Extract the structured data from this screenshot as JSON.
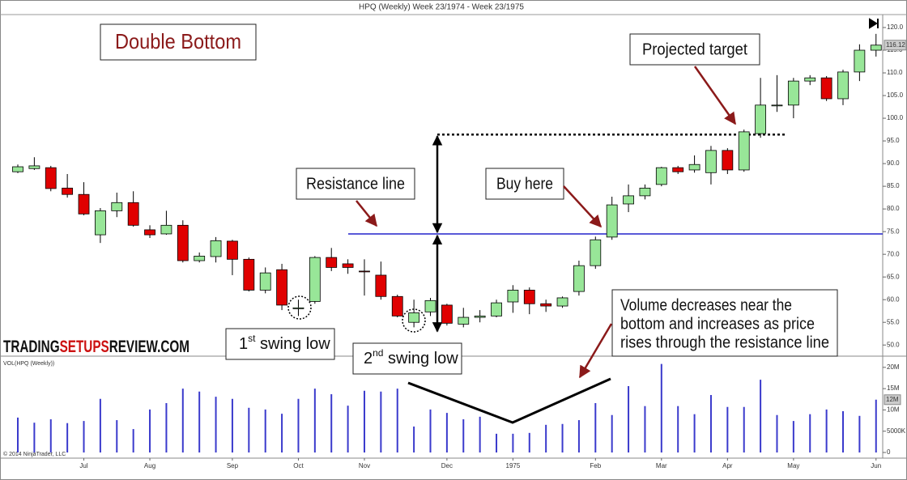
{
  "chart_data": [
    {
      "type": "candlestick",
      "title": "HPQ (Weekly)  Week 23/1974 - Week 23/1975",
      "categories": [
        null,
        null,
        null,
        null,
        "Jul",
        null,
        null,
        null,
        "Aug",
        null,
        null,
        null,
        null,
        "Sep",
        null,
        null,
        null,
        "Oct",
        null,
        null,
        null,
        "Nov",
        null,
        null,
        null,
        null,
        "Dec",
        null,
        null,
        null,
        "1975",
        null,
        null,
        null,
        null,
        "Feb",
        null,
        null,
        null,
        "Mar",
        null,
        null,
        null,
        "Apr",
        null,
        null,
        null,
        "May",
        null,
        null,
        null,
        null,
        "Jun"
      ],
      "open": [
        88.2,
        88.9,
        89.1,
        84.6,
        83.2,
        74.3,
        79.6,
        81.4,
        75.4,
        74.5,
        76.4,
        68.6,
        69.5,
        72.9,
        68.9,
        62.1,
        66.6,
        58.0,
        59.6,
        69.3,
        67.9,
        66.3,
        65.4,
        60.7,
        55.0,
        57.3,
        58.8,
        54.6,
        56.1,
        56.4,
        59.5,
        62.1,
        59.1,
        58.6,
        61.8,
        67.5,
        73.8,
        81.1,
        82.9,
        85.4,
        89.1,
        88.6,
        88.0,
        92.9,
        88.6,
        96.6,
        102.8,
        102.9,
        108.2,
        108.9,
        104.3,
        110.2,
        115.0
      ],
      "high": [
        89.8,
        91.4,
        89.5,
        87.7,
        85.9,
        80.2,
        83.6,
        83.9,
        76.4,
        79.6,
        77.5,
        70.4,
        73.8,
        73.2,
        69.3,
        67.1,
        67.9,
        60.0,
        69.6,
        71.4,
        68.9,
        68.9,
        68.4,
        61.1,
        60.0,
        60.4,
        59.1,
        58.2,
        57.7,
        60.0,
        63.2,
        62.7,
        60.0,
        60.7,
        68.6,
        73.9,
        82.7,
        85.4,
        85.4,
        89.3,
        89.5,
        91.8,
        93.9,
        93.4,
        97.5,
        108.9,
        109.5,
        108.9,
        109.5,
        109.3,
        110.7,
        116.3,
        118.6
      ],
      "low": [
        87.9,
        88.6,
        83.9,
        82.5,
        78.6,
        72.5,
        78.2,
        76.1,
        73.6,
        74.3,
        68.2,
        68.2,
        68.2,
        65.4,
        61.8,
        61.4,
        57.7,
        56.4,
        59.1,
        66.3,
        65.7,
        60.9,
        60.0,
        56.1,
        53.9,
        56.4,
        54.3,
        53.9,
        55.0,
        56.1,
        57.1,
        56.8,
        57.3,
        58.2,
        60.9,
        66.8,
        73.2,
        79.3,
        82.1,
        85.0,
        87.7,
        88.0,
        85.4,
        87.7,
        88.2,
        95.7,
        101.4,
        100.0,
        107.3,
        103.8,
        102.9,
        108.2,
        113.6
      ],
      "close": [
        89.3,
        89.5,
        84.5,
        83.2,
        78.9,
        79.6,
        81.4,
        76.4,
        74.3,
        76.4,
        68.6,
        69.6,
        73.0,
        68.9,
        62.1,
        65.9,
        58.8,
        58.2,
        69.3,
        67.1,
        67.1,
        66.2,
        60.7,
        56.4,
        57.1,
        59.8,
        54.8,
        56.1,
        56.4,
        59.3,
        62.1,
        59.1,
        58.6,
        60.4,
        67.5,
        73.2,
        80.9,
        82.9,
        84.6,
        89.1,
        88.2,
        89.8,
        92.9,
        88.6,
        97.0,
        102.9,
        102.9,
        108.2,
        108.9,
        104.3,
        110.2,
        115.0,
        116.12
      ],
      "up_color": "#98e698",
      "down_color": "#e00000",
      "last_price": {
        "value": 116.12,
        "label": "116.12"
      },
      "ylim": [
        47.9,
        122.5
      ],
      "yticks": [
        {
          "value": 120,
          "label": "120.0"
        },
        {
          "value": 115,
          "label": "115.0"
        },
        {
          "value": 110,
          "label": "110.0"
        },
        {
          "value": 105,
          "label": "105.0"
        },
        {
          "value": 100,
          "label": "100.0"
        },
        {
          "value": 95,
          "label": "95.0"
        },
        {
          "value": 90,
          "label": "90.0"
        },
        {
          "value": 85,
          "label": "85.0"
        },
        {
          "value": 80,
          "label": "80.0"
        },
        {
          "value": 75,
          "label": "75.0"
        },
        {
          "value": 70,
          "label": "70.0"
        },
        {
          "value": 65,
          "label": "65.0"
        },
        {
          "value": 60,
          "label": "60.0"
        },
        {
          "value": 55,
          "label": "55.0"
        },
        {
          "value": 50,
          "label": "50.0"
        }
      ],
      "annotations": {
        "heading": "Double Bottom",
        "resistance_label": "Resistance line",
        "resistance_level": 74.5,
        "resistance_color": "#2222cc",
        "target_label": "Projected target",
        "target_level": 96.4,
        "measured_low": 53,
        "buy_label": "Buy here",
        "first_low": [
          "1",
          "st",
          " swing low"
        ],
        "second_low": [
          "2",
          "nd",
          " swing low"
        ],
        "volume_note": [
          "Volume decreases near the",
          "bottom and increases as price",
          "rises through the resistance line"
        ]
      },
      "watermark": [
        "TRADING",
        "SETUPS",
        "REVIEW.COM"
      ],
      "footer": "© 2014 NinjaTrader, LLC"
    },
    {
      "type": "bar",
      "title": "VOL(HPQ (Weekly))",
      "values": [
        8.2,
        7.0,
        7.8,
        6.9,
        7.4,
        12.6,
        7.6,
        5.5,
        10.1,
        11.6,
        15.0,
        14.3,
        13.1,
        12.6,
        10.5,
        10.1,
        9.1,
        12.6,
        15.0,
        13.7,
        11.0,
        14.5,
        14.3,
        15.0,
        6.1,
        10.1,
        9.3,
        7.8,
        8.4,
        4.4,
        4.4,
        4.6,
        6.5,
        6.7,
        7.6,
        11.6,
        8.8,
        15.6,
        10.9,
        20.8,
        10.9,
        9.0,
        13.5,
        10.7,
        10.7,
        17.1,
        8.8,
        7.4,
        9.0,
        10.1,
        9.7,
        8.6,
        12.4
      ],
      "color": "#3a3acc",
      "last_value": {
        "value": 12.4,
        "label": "12M"
      },
      "ylim": [
        0,
        21.3
      ],
      "yticks": [
        {
          "value": 20,
          "label": "20M"
        },
        {
          "value": 15,
          "label": "15M"
        },
        {
          "value": 10,
          "label": "10M"
        },
        {
          "value": 5,
          "label": "5000K"
        },
        0
      ]
    }
  ]
}
